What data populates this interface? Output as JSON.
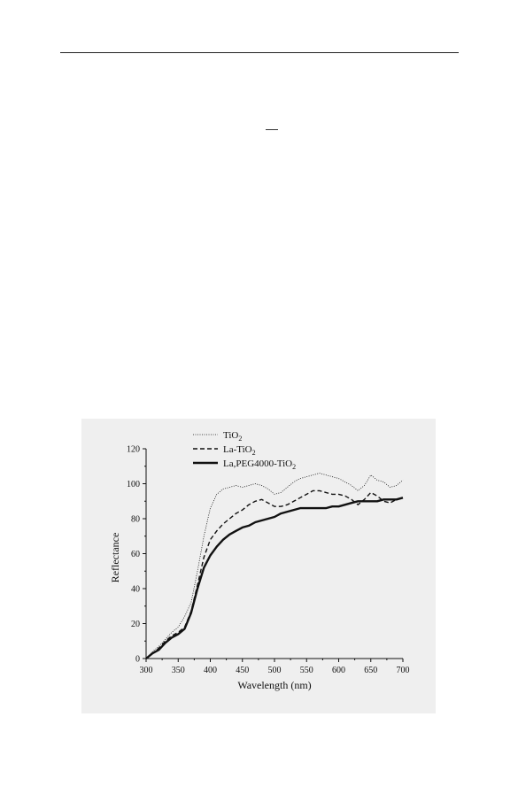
{
  "chart_data": {
    "type": "line",
    "xlabel": "Wavelength (nm)",
    "ylabel": "Reflectance",
    "xlim": [
      300,
      700
    ],
    "ylim": [
      0,
      120
    ],
    "xticks": [
      300,
      350,
      400,
      450,
      500,
      550,
      600,
      650,
      700
    ],
    "yticks": [
      0,
      20,
      40,
      60,
      80,
      100,
      120
    ],
    "grid": false,
    "legend_position": "top-left",
    "series": [
      {
        "name": "TiO",
        "name_subscript": "2",
        "style": "dotted",
        "x": [
          300,
          310,
          320,
          330,
          340,
          350,
          360,
          370,
          380,
          390,
          400,
          410,
          420,
          430,
          440,
          450,
          460,
          470,
          480,
          490,
          500,
          510,
          520,
          530,
          540,
          550,
          560,
          570,
          580,
          590,
          600,
          610,
          620,
          630,
          640,
          650,
          660,
          670,
          680,
          690,
          700
        ],
        "y": [
          0,
          4,
          7,
          11,
          15,
          18,
          24,
          32,
          50,
          70,
          86,
          94,
          97,
          98,
          99,
          98,
          99,
          100,
          99,
          97,
          94,
          95,
          98,
          101,
          103,
          104,
          105,
          106,
          105,
          104,
          103,
          101,
          99,
          96,
          99,
          105,
          102,
          101,
          98,
          99,
          102
        ]
      },
      {
        "name": "La-TiO",
        "name_subscript": "2",
        "style": "dashed",
        "x": [
          300,
          310,
          320,
          330,
          340,
          350,
          360,
          370,
          380,
          390,
          400,
          410,
          420,
          430,
          440,
          450,
          460,
          470,
          480,
          490,
          500,
          510,
          520,
          530,
          540,
          550,
          560,
          570,
          580,
          590,
          600,
          610,
          620,
          630,
          640,
          650,
          660,
          670,
          680,
          690,
          700
        ],
        "y": [
          0,
          3,
          6,
          10,
          13,
          15,
          18,
          27,
          42,
          58,
          68,
          73,
          77,
          80,
          83,
          85,
          88,
          90,
          91,
          89,
          87,
          87,
          88,
          90,
          92,
          94,
          96,
          96,
          95,
          94,
          94,
          93,
          91,
          88,
          91,
          95,
          93,
          90,
          89,
          91,
          92
        ]
      },
      {
        "name": "La,PEG4000-TiO",
        "name_subscript": "2",
        "style": "solid",
        "x": [
          300,
          310,
          320,
          330,
          340,
          350,
          360,
          370,
          380,
          390,
          400,
          410,
          420,
          430,
          440,
          450,
          460,
          470,
          480,
          490,
          500,
          510,
          520,
          530,
          540,
          550,
          560,
          570,
          580,
          590,
          600,
          610,
          620,
          630,
          640,
          650,
          660,
          670,
          680,
          690,
          700
        ],
        "y": [
          0,
          3,
          5,
          9,
          12,
          14,
          17,
          26,
          40,
          52,
          59,
          64,
          68,
          71,
          73,
          75,
          76,
          78,
          79,
          80,
          81,
          83,
          84,
          85,
          86,
          86,
          86,
          86,
          86,
          87,
          87,
          88,
          89,
          90,
          90,
          90,
          90,
          91,
          91,
          91,
          92
        ]
      }
    ]
  }
}
